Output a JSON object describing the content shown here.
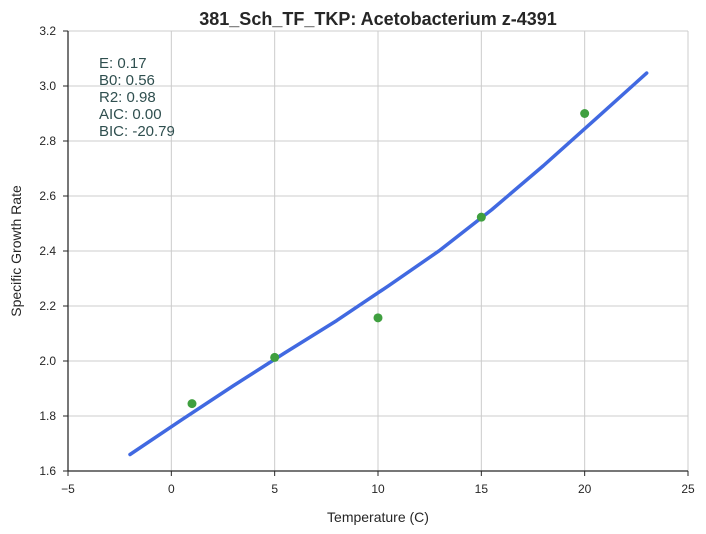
{
  "chart_data": {
    "type": "scatter",
    "title": "381_Sch_TF_TKP: Acetobacterium z-4391",
    "xlabel": "Temperature (C)",
    "ylabel": "Specific Growth Rate",
    "xlim": [
      -5,
      25
    ],
    "ylim": [
      1.6,
      3.2
    ],
    "xticks": [
      -5,
      0,
      5,
      10,
      15,
      20,
      25
    ],
    "yticks": [
      1.6,
      1.8,
      2.0,
      2.2,
      2.4,
      2.6,
      2.8,
      3.0,
      3.2
    ],
    "xtick_labels": [
      "−5",
      "0",
      "5",
      "10",
      "15",
      "20",
      "25"
    ],
    "ytick_labels": [
      "1.6",
      "1.8",
      "2.0",
      "2.2",
      "2.4",
      "2.6",
      "2.8",
      "3.0",
      "3.2"
    ],
    "grid": true,
    "points": {
      "x": [
        1,
        5,
        10,
        15,
        20
      ],
      "y": [
        1.845,
        2.013,
        2.157,
        2.523,
        2.9
      ],
      "color": "#3f9f3f"
    },
    "fit": {
      "x": [
        -2,
        0.5,
        3,
        5.5,
        8,
        10.5,
        13,
        15.5,
        18,
        20.5,
        23
      ],
      "y": [
        1.66,
        1.786,
        1.91,
        2.03,
        2.147,
        2.273,
        2.403,
        2.55,
        2.71,
        2.878,
        3.047
      ],
      "color": "#4169e1"
    },
    "annotations": [
      "E:  0.17",
      "B0:  0.56",
      "R2:  0.98",
      "AIC: 0.00",
      "BIC: -20.79"
    ],
    "annotation_color": "#2f4f4f"
  }
}
